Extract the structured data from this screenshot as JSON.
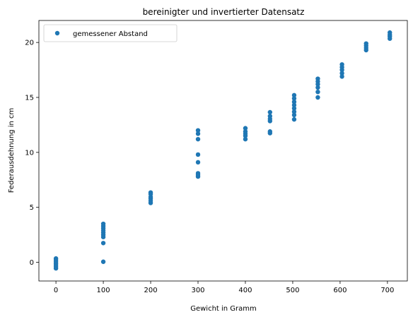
{
  "chart_data": {
    "type": "scatter",
    "title": "bereinigter und invertierter Datensatz",
    "xlabel": "Gewicht in Gramm",
    "ylabel": "Federausdehnung in cm",
    "xlim": [
      -36,
      742
    ],
    "ylim": [
      -1.7,
      22.0
    ],
    "xticks": [
      0,
      100,
      200,
      300,
      400,
      500,
      600,
      700
    ],
    "yticks": [
      0,
      5,
      10,
      15,
      20
    ],
    "grid": false,
    "legend_position": "top-left",
    "series": [
      {
        "name": "gemessener Abstand",
        "color": "#1f77b4",
        "points": [
          [
            0,
            0.35
          ],
          [
            0,
            0.2
          ],
          [
            0,
            0.05
          ],
          [
            0,
            -0.1
          ],
          [
            0,
            -0.25
          ],
          [
            0,
            -0.4
          ],
          [
            0,
            -0.55
          ],
          [
            100,
            3.5
          ],
          [
            100,
            3.3
          ],
          [
            100,
            3.1
          ],
          [
            100,
            2.9
          ],
          [
            100,
            2.7
          ],
          [
            100,
            2.5
          ],
          [
            100,
            2.3
          ],
          [
            100,
            1.75
          ],
          [
            100,
            0.05
          ],
          [
            200,
            6.35
          ],
          [
            200,
            6.2
          ],
          [
            200,
            5.95
          ],
          [
            200,
            5.8
          ],
          [
            200,
            5.6
          ],
          [
            200,
            5.4
          ],
          [
            300,
            12.0
          ],
          [
            300,
            11.7
          ],
          [
            300,
            11.2
          ],
          [
            300,
            9.8
          ],
          [
            300,
            9.1
          ],
          [
            300,
            8.1
          ],
          [
            300,
            7.95
          ],
          [
            300,
            7.8
          ],
          [
            400,
            12.2
          ],
          [
            400,
            11.9
          ],
          [
            400,
            11.7
          ],
          [
            400,
            11.5
          ],
          [
            400,
            11.2
          ],
          [
            452,
            13.65
          ],
          [
            452,
            13.3
          ],
          [
            452,
            13.05
          ],
          [
            452,
            12.85
          ],
          [
            452,
            11.9
          ],
          [
            452,
            11.75
          ],
          [
            503,
            15.2
          ],
          [
            503,
            14.9
          ],
          [
            503,
            14.6
          ],
          [
            503,
            14.3
          ],
          [
            503,
            14.0
          ],
          [
            503,
            13.7
          ],
          [
            503,
            13.4
          ],
          [
            503,
            13.0
          ],
          [
            553,
            16.7
          ],
          [
            553,
            16.45
          ],
          [
            553,
            16.2
          ],
          [
            553,
            15.9
          ],
          [
            553,
            15.5
          ],
          [
            553,
            15.0
          ],
          [
            604,
            18.0
          ],
          [
            604,
            17.75
          ],
          [
            604,
            17.5
          ],
          [
            604,
            17.2
          ],
          [
            604,
            16.9
          ],
          [
            655,
            19.9
          ],
          [
            655,
            19.7
          ],
          [
            655,
            19.5
          ],
          [
            655,
            19.3
          ],
          [
            705,
            20.9
          ],
          [
            705,
            20.7
          ],
          [
            705,
            20.55
          ],
          [
            705,
            20.35
          ]
        ]
      }
    ]
  }
}
